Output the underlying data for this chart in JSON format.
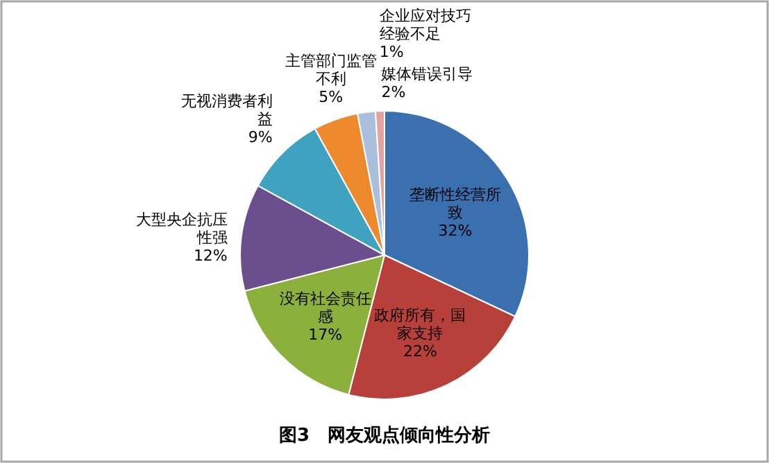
{
  "chart_data": {
    "type": "pie",
    "title": "图3　网友观点倾向性分析",
    "categories": [
      "垄断性经营所致",
      "政府所有，国家支持",
      "没有社会责任感",
      "大型央企抗压性强",
      "无视消费者利益",
      "主管部门监管不利",
      "媒体错误引导",
      "企业应对技巧经验不足"
    ],
    "values": [
      32,
      22,
      17,
      12,
      9,
      5,
      2,
      1
    ],
    "colors": [
      "#3a6fb0",
      "#b8403a",
      "#8cb03c",
      "#6b4e8e",
      "#3fa3bf",
      "#ee8a2e",
      "#a9bfdc",
      "#e3a3a0"
    ],
    "value_labels": [
      "32%",
      "22%",
      "17%",
      "12%",
      "9%",
      "5%",
      "2%",
      "1%"
    ]
  }
}
